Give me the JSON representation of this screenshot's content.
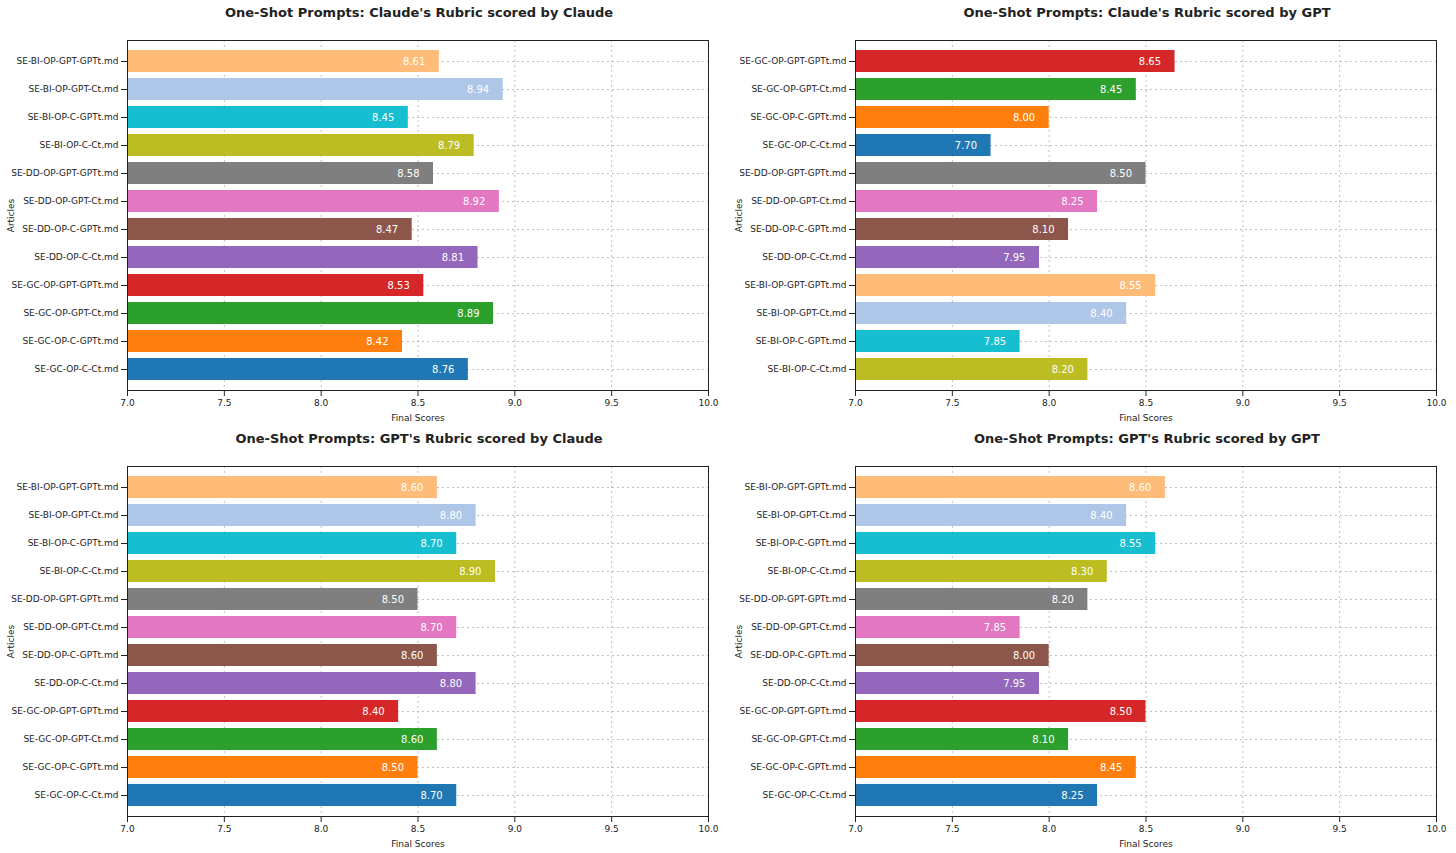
{
  "chart_data": [
    {
      "type": "bar",
      "title": "One-Shot Prompts: Claude's Rubric scored by Claude",
      "orientation": "horizontal",
      "xlabel": "Final Scores",
      "ylabel": "Articles",
      "categories": [
        "SE-BI-OP-GPT-GPTt.md",
        "SE-BI-OP-GPT-Ct.md",
        "SE-BI-OP-C-GPTt.md",
        "SE-BI-OP-C-Ct.md",
        "SE-DD-OP-GPT-GPTt.md",
        "SE-DD-OP-GPT-Ct.md",
        "SE-DD-OP-C-GPTt.md",
        "SE-DD-OP-C-Ct.md",
        "SE-GC-OP-GPT-GPTt.md",
        "SE-GC-OP-GPT-Ct.md",
        "SE-GC-OP-C-GPTt.md",
        "SE-GC-OP-C-Ct.md"
      ],
      "values": [
        8.61,
        8.94,
        8.45,
        8.79,
        8.58,
        8.92,
        8.47,
        8.81,
        8.53,
        8.89,
        8.42,
        8.76
      ],
      "value_labels": [
        "8.61",
        "8.94",
        "8.45",
        "8.79",
        "8.58",
        "8.92",
        "8.47",
        "8.81",
        "8.53",
        "8.89",
        "8.42",
        "8.76"
      ],
      "colors": [
        "#ffbb78",
        "#aec7e8",
        "#17becf",
        "#bcbd22",
        "#7f7f7f",
        "#e377c2",
        "#8c564b",
        "#9467bd",
        "#d62728",
        "#2ca02c",
        "#ff7f0e",
        "#1f77b4"
      ],
      "xlim": [
        7,
        10
      ],
      "xticks": [
        {
          "value": 7,
          "label": "7.0"
        },
        {
          "value": 7.5,
          "label": "7.5"
        },
        {
          "value": 8,
          "label": "8.0"
        },
        {
          "value": 8.5,
          "label": "8.5"
        },
        {
          "value": 9,
          "label": "9.0"
        },
        {
          "value": 9.5,
          "label": "9.5"
        },
        {
          "value": 10,
          "label": "10.0"
        }
      ],
      "grid": true,
      "data_labels": true
    },
    {
      "type": "bar",
      "title": "One-Shot Prompts: Claude's Rubric scored by GPT",
      "orientation": "horizontal",
      "xlabel": "Final Scores",
      "ylabel": "Articles",
      "categories": [
        "SE-GC-OP-GPT-GPTt.md",
        "SE-GC-OP-GPT-Ct.md",
        "SE-GC-OP-C-GPTt.md",
        "SE-GC-OP-C-Ct.md",
        "SE-DD-OP-GPT-GPTt.md",
        "SE-DD-OP-GPT-Ct.md",
        "SE-DD-OP-C-GPTt.md",
        "SE-DD-OP-C-Ct.md",
        "SE-BI-OP-GPT-GPTt.md",
        "SE-BI-OP-GPT-Ct.md",
        "SE-BI-OP-C-GPTt.md",
        "SE-BI-OP-C-Ct.md"
      ],
      "values": [
        8.65,
        8.45,
        8.0,
        7.7,
        8.5,
        8.25,
        8.1,
        7.95,
        8.55,
        8.4,
        7.85,
        8.2
      ],
      "value_labels": [
        "8.65",
        "8.45",
        "8.00",
        "7.70",
        "8.50",
        "8.25",
        "8.10",
        "7.95",
        "8.55",
        "8.40",
        "7.85",
        "8.20"
      ],
      "colors": [
        "#d62728",
        "#2ca02c",
        "#ff7f0e",
        "#1f77b4",
        "#7f7f7f",
        "#e377c2",
        "#8c564b",
        "#9467bd",
        "#ffbb78",
        "#aec7e8",
        "#17becf",
        "#bcbd22"
      ],
      "xlim": [
        7,
        10
      ],
      "xticks": [
        {
          "value": 7,
          "label": "7.0"
        },
        {
          "value": 7.5,
          "label": "7.5"
        },
        {
          "value": 8,
          "label": "8.0"
        },
        {
          "value": 8.5,
          "label": "8.5"
        },
        {
          "value": 9,
          "label": "9.0"
        },
        {
          "value": 9.5,
          "label": "9.5"
        },
        {
          "value": 10,
          "label": "10.0"
        }
      ],
      "grid": true,
      "data_labels": true
    },
    {
      "type": "bar",
      "title": "One-Shot Prompts: GPT's Rubric scored by Claude",
      "orientation": "horizontal",
      "xlabel": "Final Scores",
      "ylabel": "Articles",
      "categories": [
        "SE-BI-OP-GPT-GPTt.md",
        "SE-BI-OP-GPT-Ct.md",
        "SE-BI-OP-C-GPTt.md",
        "SE-BI-OP-C-Ct.md",
        "SE-DD-OP-GPT-GPTt.md",
        "SE-DD-OP-GPT-Ct.md",
        "SE-DD-OP-C-GPTt.md",
        "SE-DD-OP-C-Ct.md",
        "SE-GC-OP-GPT-GPTt.md",
        "SE-GC-OP-GPT-Ct.md",
        "SE-GC-OP-C-GPTt.md",
        "SE-GC-OP-C-Ct.md"
      ],
      "values": [
        8.6,
        8.8,
        8.7,
        8.9,
        8.5,
        8.7,
        8.6,
        8.8,
        8.4,
        8.6,
        8.5,
        8.7
      ],
      "value_labels": [
        "8.60",
        "8.80",
        "8.70",
        "8.90",
        "8.50",
        "8.70",
        "8.60",
        "8.80",
        "8.40",
        "8.60",
        "8.50",
        "8.70"
      ],
      "colors": [
        "#ffbb78",
        "#aec7e8",
        "#17becf",
        "#bcbd22",
        "#7f7f7f",
        "#e377c2",
        "#8c564b",
        "#9467bd",
        "#d62728",
        "#2ca02c",
        "#ff7f0e",
        "#1f77b4"
      ],
      "xlim": [
        7,
        10
      ],
      "xticks": [
        {
          "value": 7,
          "label": "7.0"
        },
        {
          "value": 7.5,
          "label": "7.5"
        },
        {
          "value": 8,
          "label": "8.0"
        },
        {
          "value": 8.5,
          "label": "8.5"
        },
        {
          "value": 9,
          "label": "9.0"
        },
        {
          "value": 9.5,
          "label": "9.5"
        },
        {
          "value": 10,
          "label": "10.0"
        }
      ],
      "grid": true,
      "data_labels": true
    },
    {
      "type": "bar",
      "title": "One-Shot Prompts: GPT's Rubric scored by GPT",
      "orientation": "horizontal",
      "xlabel": "Final Scores",
      "ylabel": "Articles",
      "categories": [
        "SE-BI-OP-GPT-GPTt.md",
        "SE-BI-OP-GPT-Ct.md",
        "SE-BI-OP-C-GPTt.md",
        "SE-BI-OP-C-Ct.md",
        "SE-DD-OP-GPT-GPTt.md",
        "SE-DD-OP-GPT-Ct.md",
        "SE-DD-OP-C-GPTt.md",
        "SE-DD-OP-C-Ct.md",
        "SE-GC-OP-GPT-GPTt.md",
        "SE-GC-OP-GPT-Ct.md",
        "SE-GC-OP-C-GPTt.md",
        "SE-GC-OP-C-Ct.md"
      ],
      "values": [
        8.6,
        8.4,
        8.55,
        8.3,
        8.2,
        7.85,
        8.0,
        7.95,
        8.5,
        8.1,
        8.45,
        8.25
      ],
      "value_labels": [
        "8.60",
        "8.40",
        "8.55",
        "8.30",
        "8.20",
        "7.85",
        "8.00",
        "7.95",
        "8.50",
        "8.10",
        "8.45",
        "8.25"
      ],
      "colors": [
        "#ffbb78",
        "#aec7e8",
        "#17becf",
        "#bcbd22",
        "#7f7f7f",
        "#e377c2",
        "#8c564b",
        "#9467bd",
        "#d62728",
        "#2ca02c",
        "#ff7f0e",
        "#1f77b4"
      ],
      "xlim": [
        7,
        10
      ],
      "xticks": [
        {
          "value": 7,
          "label": "7.0"
        },
        {
          "value": 7.5,
          "label": "7.5"
        },
        {
          "value": 8,
          "label": "8.0"
        },
        {
          "value": 8.5,
          "label": "8.5"
        },
        {
          "value": 9,
          "label": "9.0"
        },
        {
          "value": 9.5,
          "label": "9.5"
        },
        {
          "value": 10,
          "label": "10.0"
        }
      ],
      "grid": true,
      "data_labels": true
    }
  ]
}
